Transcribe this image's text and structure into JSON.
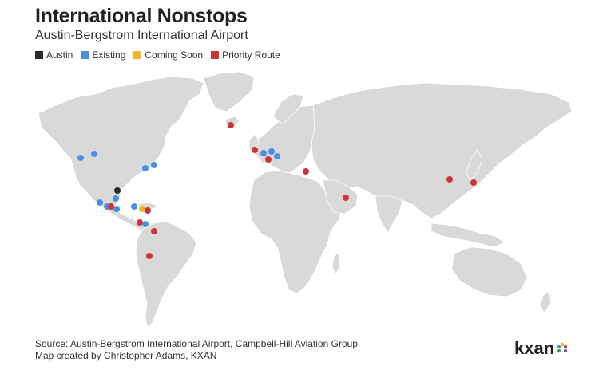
{
  "header": {
    "title": "International Nonstops",
    "subtitle": "Austin-Bergstrom International Airport"
  },
  "legend": [
    {
      "label": "Austin",
      "color": "#2b2b2b"
    },
    {
      "label": "Existing",
      "color": "#4a90e2"
    },
    {
      "label": "Coming Soon",
      "color": "#f2b52b"
    },
    {
      "label": "Priority Route",
      "color": "#cc3535"
    }
  ],
  "footer": {
    "source": "Source: Austin-Bergstrom International Airport, Campbell-Hill Aviation Group",
    "credit": "Map created by Christopher Adams, KXAN"
  },
  "logo": {
    "text": "kxan"
  }
}
